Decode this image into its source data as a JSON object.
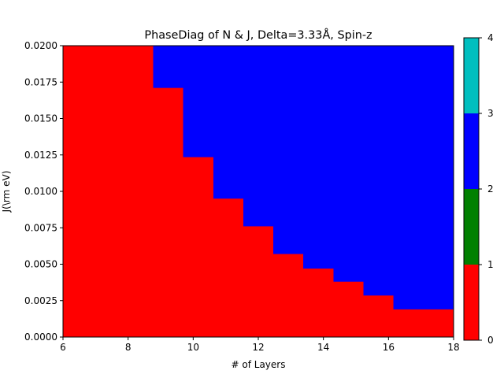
{
  "chart_data": {
    "type": "heatmap",
    "title": "PhaseDiag of N & J, Delta=3.33$\\AA$, Spin-z",
    "title_display": "PhaseDiag of N & J, Delta=3.33Å, Spin-z",
    "xlabel": "# of Layers",
    "ylabel": "J(\\rm eV)",
    "xlim": [
      6,
      18
    ],
    "ylim": [
      0,
      0.02
    ],
    "x_ticks": [
      "6",
      "8",
      "10",
      "12",
      "14",
      "16",
      "18"
    ],
    "y_ticks": [
      "0.0000",
      "0.0025",
      "0.0050",
      "0.0075",
      "0.0100",
      "0.0125",
      "0.0150",
      "0.0175",
      "0.0200"
    ],
    "colorbar": {
      "ticks": [
        "0",
        "1",
        "2",
        "3",
        "4"
      ],
      "levels": [
        {
          "from": 0,
          "to": 1,
          "color": "#ff0000"
        },
        {
          "from": 1,
          "to": 2,
          "color": "#008000"
        },
        {
          "from": 2,
          "to": 3,
          "color": "#0000ff"
        },
        {
          "from": 3,
          "to": 4,
          "color": "#00bfbf"
        }
      ]
    },
    "phases": {
      "background": {
        "value": 0,
        "color": "#ff0000"
      },
      "region": {
        "value": 2,
        "color": "#0000ff"
      }
    },
    "boundary": [
      {
        "x_start": 8.77,
        "x_end": 9.69,
        "j": 0.0171
      },
      {
        "x_start": 9.69,
        "x_end": 10.62,
        "j": 0.01235
      },
      {
        "x_start": 10.62,
        "x_end": 11.54,
        "j": 0.0095
      },
      {
        "x_start": 11.54,
        "x_end": 12.46,
        "j": 0.0076
      },
      {
        "x_start": 12.46,
        "x_end": 13.38,
        "j": 0.0057
      },
      {
        "x_start": 13.38,
        "x_end": 14.31,
        "j": 0.0047
      },
      {
        "x_start": 14.31,
        "x_end": 15.23,
        "j": 0.0038
      },
      {
        "x_start": 15.23,
        "x_end": 16.15,
        "j": 0.00285
      },
      {
        "x_start": 16.15,
        "x_end": 18.0,
        "j": 0.0019
      }
    ],
    "grid": false
  }
}
